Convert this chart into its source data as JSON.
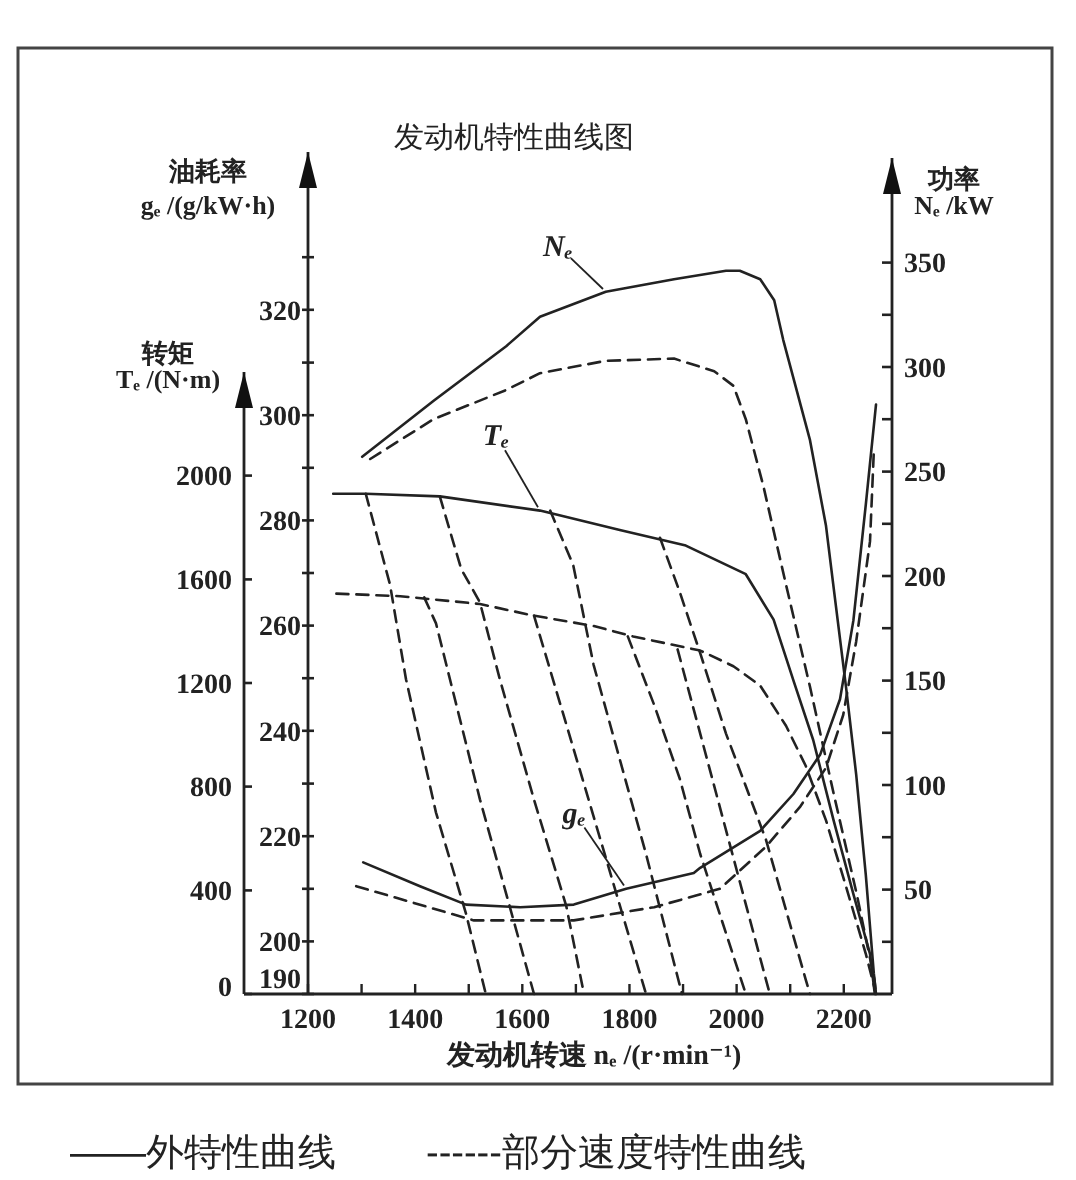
{
  "chart_data": {
    "type": "line",
    "title": "发动机特性曲线图",
    "xlabel": "发动机转速 nₑ /(r·min⁻¹)",
    "ylabel": "油耗率\ngₑ /(g/kW·h)",
    "y2label": "功率\nNₑ /kW",
    "y3label": "转矩\nTₑ /(N·m)",
    "xlim": [
      1200,
      2290
    ],
    "xticks": [
      1200,
      {
        "value": 1300,
        "label": null
      },
      1400,
      {
        "value": 1500,
        "label": null
      },
      1600,
      {
        "value": 1700,
        "label": null
      },
      1800,
      {
        "value": 1900,
        "label": null
      },
      2000,
      {
        "value": 2100,
        "label": null
      },
      2200
    ],
    "ylim": [
      190,
      350
    ],
    "yticks": [
      190,
      200,
      {
        "value": 210,
        "label": null
      },
      220,
      {
        "value": 230,
        "label": null
      },
      240,
      {
        "value": 250,
        "label": null
      },
      260,
      {
        "value": 270,
        "label": null
      },
      280,
      {
        "value": 290,
        "label": null
      },
      300,
      {
        "value": 310,
        "label": null
      },
      320,
      {
        "value": 330,
        "label": null
      }
    ],
    "y2lim": [
      0,
      400
    ],
    "y2ticks": [
      {
        "value": 25,
        "label": null
      },
      50,
      {
        "value": 75,
        "label": null
      },
      100,
      {
        "value": 125,
        "label": null
      },
      150,
      {
        "value": 175,
        "label": null
      },
      200,
      {
        "value": 225,
        "label": null
      },
      250,
      {
        "value": 275,
        "label": null
      },
      300,
      {
        "value": 325,
        "label": null
      },
      350
    ],
    "y3lim": [
      0,
      2400
    ],
    "y3ticks": [
      0,
      400,
      800,
      1200,
      1600,
      2000
    ],
    "series": [
      {
        "name": "Nₑ",
        "axis": "y2",
        "line_style": "solid",
        "color": "#222222",
        "x": [
          1301,
          1435,
          1570,
          1633,
          1756,
          1883,
          1980,
          2006,
          2044,
          2070,
          2087,
          2137,
          2167,
          2185,
          2204,
          2223,
          2241,
          2256,
          2260
        ],
        "values": [
          257,
          284,
          310,
          324,
          336,
          342,
          346,
          346,
          342,
          332,
          313,
          265,
          224,
          186,
          147,
          105,
          57,
          10,
          0
        ]
      },
      {
        "axis": "y2",
        "line_style": "dashed",
        "color": "#222222",
        "x": [
          1316,
          1434,
          1570,
          1633,
          1756,
          1883,
          1958,
          1994,
          2017,
          2050,
          2093,
          2137,
          2181,
          2224,
          2257,
          2260
        ],
        "values": [
          256,
          275,
          289,
          297,
          303,
          304,
          298,
          291,
          275,
          243,
          195,
          147,
          96,
          48,
          7,
          0
        ]
      },
      {
        "name": "Tₑ",
        "axis": "y3",
        "line_style": "solid",
        "color": "#222222",
        "x": [
          1247,
          1308,
          1446,
          1633,
          1782,
          1905,
          2017,
          2069,
          2106,
          2143,
          2181,
          2218,
          2249,
          2258
        ],
        "values": [
          1930,
          1930,
          1920,
          1865,
          1790,
          1730,
          1620,
          1445,
          1210,
          980,
          670,
          385,
          155,
          0
        ]
      },
      {
        "axis": "y3",
        "line_style": "dashed",
        "color": "#222222",
        "x": [
          1253,
          1372,
          1521,
          1621,
          1733,
          1807,
          1932,
          1994,
          2044,
          2092,
          2129,
          2167,
          2204,
          2241,
          2260
        ],
        "values": [
          1545,
          1535,
          1505,
          1460,
          1420,
          1380,
          1325,
          1265,
          1190,
          1035,
          880,
          670,
          415,
          155,
          0
        ]
      },
      {
        "axis": "y3",
        "line_style": "dashed",
        "color": "#222222",
        "x": [
          1308,
          1353,
          1383,
          1439,
          1495,
          1532
        ],
        "values": [
          1930,
          1580,
          1215,
          700,
          310,
          0
        ]
      },
      {
        "axis": "y3",
        "line_style": "dashed",
        "color": "#222222",
        "x": [
          1446,
          1486,
          1521,
          1558,
          1622,
          1682,
          1715
        ],
        "values": [
          1920,
          1640,
          1510,
          1215,
          750,
          340,
          0
        ]
      },
      {
        "axis": "y3",
        "line_style": "dashed",
        "color": "#222222",
        "x": [
          1652,
          1695,
          1733,
          1782,
          1831,
          1898
        ],
        "values": [
          1865,
          1655,
          1270,
          905,
          540,
          0
        ]
      },
      {
        "axis": "y3",
        "line_style": "dashed",
        "color": "#222222",
        "x": [
          1857,
          1894,
          1932,
          1980,
          2055,
          2129,
          2137
        ],
        "values": [
          1760,
          1550,
          1315,
          1005,
          595,
          55,
          0
        ]
      },
      {
        "axis": "y3",
        "line_style": "dashed",
        "color": "#222222",
        "x": [
          1417,
          1439,
          1521,
          1622
        ],
        "values": [
          1530,
          1430,
          750,
          0
        ]
      },
      {
        "axis": "y3",
        "line_style": "dashed",
        "color": "#222222",
        "x": [
          1622,
          1726,
          1831
        ],
        "values": [
          1460,
          735,
          0
        ]
      },
      {
        "axis": "y3",
        "line_style": "dashed",
        "color": "#222222",
        "x": [
          1797,
          1846,
          1894,
          1932,
          2017
        ],
        "values": [
          1380,
          1115,
          830,
          540,
          0
        ]
      },
      {
        "axis": "y3",
        "line_style": "dashed",
        "color": "#222222",
        "x": [
          1890,
          1932,
          2055,
          2062
        ],
        "values": [
          1330,
          1005,
          55,
          0
        ]
      },
      {
        "name": "gₑ",
        "axis": "y",
        "line_style": "solid",
        "color": "#222222",
        "x": [
          1303,
          1409,
          1495,
          1596,
          1696,
          1794,
          1920,
          1932,
          2044,
          2106,
          2156,
          2193,
          2218,
          2241,
          2260
        ],
        "values": [
          215,
          210.5,
          207,
          206.5,
          207,
          210,
          213,
          214,
          221,
          228,
          235.5,
          246,
          261,
          283,
          302
        ]
      },
      {
        "axis": "y",
        "line_style": "dashed",
        "color": "#222222",
        "x": [
          1290,
          1510,
          1696,
          1846,
          1969,
          2055,
          2118,
          2167,
          2199,
          2223,
          2249,
          2256
        ],
        "values": [
          210.5,
          204,
          204,
          206.5,
          210,
          218,
          225.5,
          233,
          243,
          257,
          276,
          293
        ]
      }
    ],
    "annotations": [
      "——外特性曲线",
      "------部分速度特性曲线"
    ]
  }
}
